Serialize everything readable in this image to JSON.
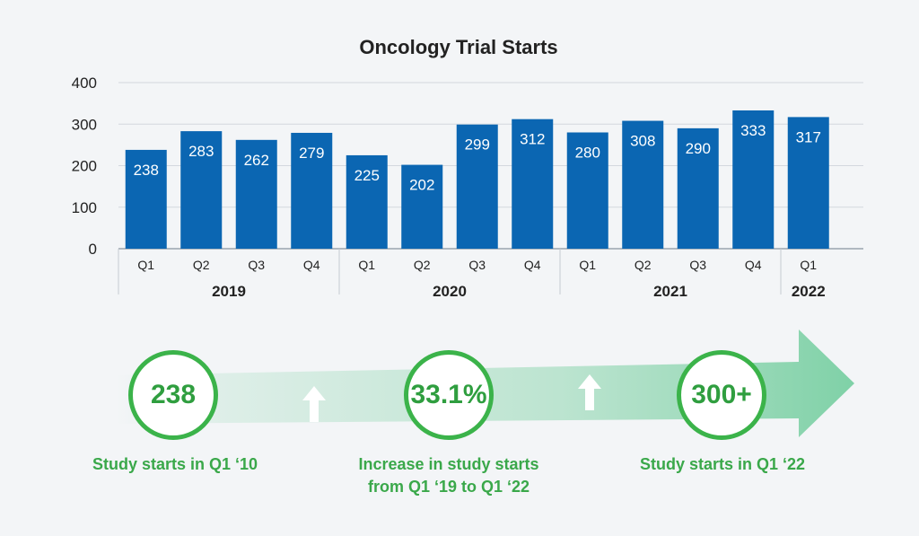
{
  "chart_data": {
    "type": "bar",
    "title": "Oncology Trial Starts",
    "categories": [
      "Q1",
      "Q2",
      "Q3",
      "Q4",
      "Q1",
      "Q2",
      "Q3",
      "Q4",
      "Q1",
      "Q2",
      "Q3",
      "Q4",
      "Q1"
    ],
    "groups": [
      {
        "label": "2019",
        "count": 4
      },
      {
        "label": "2020",
        "count": 4
      },
      {
        "label": "2021",
        "count": 4
      },
      {
        "label": "2022",
        "count": 1
      }
    ],
    "values": [
      238,
      283,
      262,
      279,
      225,
      202,
      299,
      312,
      280,
      308,
      290,
      333,
      317
    ],
    "ylim": [
      0,
      400
    ],
    "yticks": [
      0,
      100,
      200,
      300,
      400
    ],
    "grid": true,
    "bar_color": "#0b66b2"
  },
  "stats": [
    {
      "value": "238",
      "caption_lines": [
        "Study starts in Q1 ‘10"
      ]
    },
    {
      "value": "33.1%",
      "caption_lines": [
        "Increase in study starts",
        "from Q1 ‘19 to Q1 ‘22"
      ]
    },
    {
      "value": "300+",
      "caption_lines": [
        "Study starts in Q1 ‘22"
      ]
    }
  ],
  "colors": {
    "accent_green": "#3bb34a",
    "text_green": "#3aa84a",
    "arrow_green": "#7fd1a7",
    "background": "#f3f5f7"
  }
}
